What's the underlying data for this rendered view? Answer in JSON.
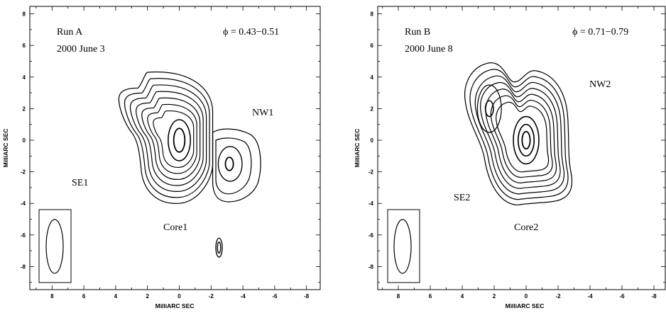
{
  "panels": [
    {
      "id": "A",
      "run_label": "Run A",
      "date_label": "2000 June 3",
      "phase_label": "ϕ = 0.43−0.51",
      "x_ticks": [
        "8",
        "6",
        "4",
        "2",
        "0",
        "-2",
        "-4",
        "-6",
        "-8"
      ],
      "y_ticks": [
        "8",
        "6",
        "4",
        "2",
        "0",
        "-2",
        "-4",
        "-6",
        "-8"
      ],
      "xlabel": "MilliARC SEC",
      "ylabel": "MilliARC SEC",
      "component_labels": [
        "NW1",
        "SE1",
        "Core1"
      ]
    },
    {
      "id": "B",
      "run_label": "Run B",
      "date_label": "2000 June 8",
      "phase_label": "ϕ = 0.71−0.79",
      "x_ticks": [
        "8",
        "6",
        "4",
        "2",
        "0",
        "-2",
        "-4",
        "-6",
        "-8"
      ],
      "y_ticks": [
        "8",
        "6",
        "4",
        "2",
        "0",
        "-2",
        "-4",
        "-6",
        "-8"
      ],
      "xlabel": "MilliARC SEC",
      "ylabel": "MilliARC SEC",
      "component_labels": [
        "NW2",
        "SE2",
        "Core2"
      ]
    }
  ],
  "axis_range": {
    "x": [
      9.5,
      -9
    ],
    "y": [
      -9.5,
      8.5
    ]
  }
}
